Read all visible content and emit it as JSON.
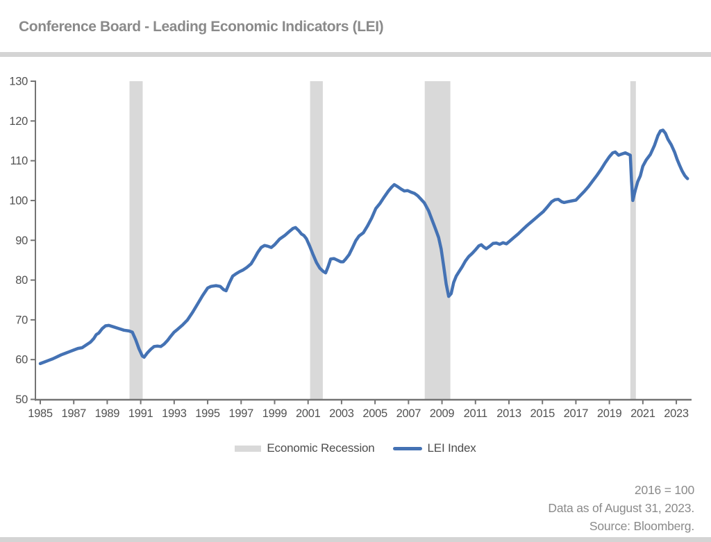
{
  "header": {
    "title": "Conference Board - Leading Economic Indicators (LEI)"
  },
  "legend": {
    "items": [
      {
        "label": "Economic Recession"
      },
      {
        "label": "LEI Index"
      }
    ]
  },
  "footer": {
    "lines": [
      "2016 = 100",
      "Data as of August 31, 2023.",
      "Source: Bloomberg."
    ]
  },
  "colors": {
    "line": "#4472b4",
    "recession": "#d9d9d9",
    "axis": "#737373",
    "tick_text": "#525252",
    "title_text": "#8a8a8a",
    "footer_text": "#8a8a8a",
    "divider": "#d4d4d4"
  },
  "chart_data": {
    "type": "line",
    "title": "Conference Board - Leading Economic Indicators (LEI)",
    "xlabel": "",
    "ylabel": "",
    "xlim": [
      1984.71,
      2023.91
    ],
    "ylim": [
      50,
      130
    ],
    "x_ticks": [
      1985,
      1987,
      1989,
      1991,
      1993,
      1995,
      1997,
      1999,
      2001,
      2003,
      2005,
      2007,
      2009,
      2011,
      2013,
      2015,
      2017,
      2019,
      2021,
      2023
    ],
    "y_ticks": [
      50,
      60,
      70,
      80,
      90,
      100,
      110,
      120,
      130
    ],
    "grid": false,
    "legend_position": "bottom",
    "recession_bands": [
      [
        1990.33,
        1991.12
      ],
      [
        2001.12,
        2001.88
      ],
      [
        2007.97,
        2009.5
      ],
      [
        2020.25,
        2020.58
      ]
    ],
    "series": [
      {
        "name": "LEI Index",
        "points": [
          [
            1985.0,
            59.0
          ],
          [
            1985.25,
            59.4
          ],
          [
            1985.5,
            59.8
          ],
          [
            1985.75,
            60.2
          ],
          [
            1986.0,
            60.7
          ],
          [
            1986.25,
            61.2
          ],
          [
            1986.5,
            61.6
          ],
          [
            1986.75,
            62.0
          ],
          [
            1987.0,
            62.4
          ],
          [
            1987.25,
            62.8
          ],
          [
            1987.5,
            63.0
          ],
          [
            1987.75,
            63.7
          ],
          [
            1988.0,
            64.4
          ],
          [
            1988.2,
            65.3
          ],
          [
            1988.35,
            66.3
          ],
          [
            1988.5,
            66.7
          ],
          [
            1988.7,
            67.8
          ],
          [
            1988.9,
            68.5
          ],
          [
            1989.1,
            68.6
          ],
          [
            1989.4,
            68.2
          ],
          [
            1989.7,
            67.8
          ],
          [
            1990.0,
            67.4
          ],
          [
            1990.3,
            67.2
          ],
          [
            1990.5,
            66.9
          ],
          [
            1990.7,
            65.0
          ],
          [
            1990.9,
            62.7
          ],
          [
            1991.1,
            60.9
          ],
          [
            1991.2,
            60.6
          ],
          [
            1991.4,
            61.7
          ],
          [
            1991.6,
            62.6
          ],
          [
            1991.8,
            63.3
          ],
          [
            1992.0,
            63.4
          ],
          [
            1992.2,
            63.3
          ],
          [
            1992.4,
            63.9
          ],
          [
            1992.6,
            64.8
          ],
          [
            1992.8,
            65.9
          ],
          [
            1993.0,
            66.9
          ],
          [
            1993.2,
            67.6
          ],
          [
            1993.5,
            68.7
          ],
          [
            1993.8,
            70.0
          ],
          [
            1994.1,
            71.9
          ],
          [
            1994.4,
            74.0
          ],
          [
            1994.7,
            76.1
          ],
          [
            1995.0,
            78.0
          ],
          [
            1995.2,
            78.4
          ],
          [
            1995.5,
            78.6
          ],
          [
            1995.75,
            78.4
          ],
          [
            1995.95,
            77.6
          ],
          [
            1996.1,
            77.3
          ],
          [
            1996.3,
            79.3
          ],
          [
            1996.5,
            81.0
          ],
          [
            1996.7,
            81.6
          ],
          [
            1996.9,
            82.1
          ],
          [
            1997.1,
            82.5
          ],
          [
            1997.35,
            83.2
          ],
          [
            1997.6,
            84.1
          ],
          [
            1997.8,
            85.5
          ],
          [
            1998.0,
            87.0
          ],
          [
            1998.2,
            88.2
          ],
          [
            1998.4,
            88.7
          ],
          [
            1998.6,
            88.5
          ],
          [
            1998.8,
            88.2
          ],
          [
            1999.0,
            88.9
          ],
          [
            1999.3,
            90.3
          ],
          [
            1999.6,
            91.2
          ],
          [
            1999.9,
            92.3
          ],
          [
            2000.1,
            93.0
          ],
          [
            2000.25,
            93.2
          ],
          [
            2000.45,
            92.4
          ],
          [
            2000.6,
            91.6
          ],
          [
            2000.75,
            91.2
          ],
          [
            2000.9,
            90.4
          ],
          [
            2001.1,
            88.5
          ],
          [
            2001.3,
            86.4
          ],
          [
            2001.5,
            84.4
          ],
          [
            2001.7,
            83.0
          ],
          [
            2001.9,
            82.2
          ],
          [
            2002.05,
            81.8
          ],
          [
            2002.2,
            83.4
          ],
          [
            2002.35,
            85.3
          ],
          [
            2002.55,
            85.4
          ],
          [
            2002.75,
            85.0
          ],
          [
            2002.95,
            84.6
          ],
          [
            2003.1,
            84.6
          ],
          [
            2003.25,
            85.3
          ],
          [
            2003.45,
            86.4
          ],
          [
            2003.65,
            88.1
          ],
          [
            2003.85,
            89.9
          ],
          [
            2004.05,
            91.1
          ],
          [
            2004.3,
            91.9
          ],
          [
            2004.55,
            93.6
          ],
          [
            2004.8,
            95.6
          ],
          [
            2005.05,
            98.0
          ],
          [
            2005.3,
            99.3
          ],
          [
            2005.55,
            100.9
          ],
          [
            2005.8,
            102.4
          ],
          [
            2006.0,
            103.4
          ],
          [
            2006.15,
            104.0
          ],
          [
            2006.35,
            103.5
          ],
          [
            2006.55,
            102.9
          ],
          [
            2006.75,
            102.4
          ],
          [
            2006.95,
            102.5
          ],
          [
            2007.15,
            102.1
          ],
          [
            2007.35,
            101.8
          ],
          [
            2007.55,
            101.2
          ],
          [
            2007.75,
            100.3
          ],
          [
            2007.95,
            99.4
          ],
          [
            2008.2,
            97.4
          ],
          [
            2008.4,
            95.2
          ],
          [
            2008.6,
            93.0
          ],
          [
            2008.8,
            90.7
          ],
          [
            2008.95,
            87.8
          ],
          [
            2009.1,
            83.5
          ],
          [
            2009.25,
            79.0
          ],
          [
            2009.4,
            75.9
          ],
          [
            2009.55,
            76.6
          ],
          [
            2009.7,
            79.4
          ],
          [
            2009.85,
            81.0
          ],
          [
            2010.0,
            82.0
          ],
          [
            2010.2,
            83.3
          ],
          [
            2010.4,
            84.8
          ],
          [
            2010.6,
            85.9
          ],
          [
            2010.8,
            86.7
          ],
          [
            2011.0,
            87.6
          ],
          [
            2011.2,
            88.6
          ],
          [
            2011.35,
            88.9
          ],
          [
            2011.5,
            88.3
          ],
          [
            2011.65,
            87.9
          ],
          [
            2011.85,
            88.5
          ],
          [
            2012.05,
            89.2
          ],
          [
            2012.25,
            89.3
          ],
          [
            2012.45,
            89.0
          ],
          [
            2012.65,
            89.4
          ],
          [
            2012.85,
            89.1
          ],
          [
            2013.05,
            89.8
          ],
          [
            2013.3,
            90.7
          ],
          [
            2013.55,
            91.6
          ],
          [
            2013.8,
            92.6
          ],
          [
            2014.05,
            93.6
          ],
          [
            2014.3,
            94.5
          ],
          [
            2014.55,
            95.4
          ],
          [
            2014.8,
            96.3
          ],
          [
            2015.05,
            97.2
          ],
          [
            2015.3,
            98.4
          ],
          [
            2015.55,
            99.7
          ],
          [
            2015.75,
            100.2
          ],
          [
            2015.95,
            100.3
          ],
          [
            2016.15,
            99.7
          ],
          [
            2016.3,
            99.5
          ],
          [
            2016.5,
            99.7
          ],
          [
            2016.75,
            99.9
          ],
          [
            2017.0,
            100.1
          ],
          [
            2017.25,
            101.2
          ],
          [
            2017.5,
            102.3
          ],
          [
            2017.75,
            103.5
          ],
          [
            2018.0,
            104.9
          ],
          [
            2018.25,
            106.3
          ],
          [
            2018.5,
            107.8
          ],
          [
            2018.75,
            109.5
          ],
          [
            2019.0,
            111.0
          ],
          [
            2019.2,
            112.0
          ],
          [
            2019.35,
            112.2
          ],
          [
            2019.55,
            111.4
          ],
          [
            2019.75,
            111.7
          ],
          [
            2019.95,
            112.0
          ],
          [
            2020.1,
            111.7
          ],
          [
            2020.25,
            111.4
          ],
          [
            2020.32,
            105.0
          ],
          [
            2020.4,
            100.0
          ],
          [
            2020.55,
            102.6
          ],
          [
            2020.7,
            104.8
          ],
          [
            2020.85,
            106.2
          ],
          [
            2021.0,
            108.6
          ],
          [
            2021.2,
            110.2
          ],
          [
            2021.45,
            111.6
          ],
          [
            2021.7,
            113.9
          ],
          [
            2021.9,
            116.3
          ],
          [
            2022.05,
            117.5
          ],
          [
            2022.2,
            117.7
          ],
          [
            2022.35,
            116.9
          ],
          [
            2022.5,
            115.4
          ],
          [
            2022.7,
            114.0
          ],
          [
            2022.9,
            112.1
          ],
          [
            2023.05,
            110.3
          ],
          [
            2023.2,
            108.8
          ],
          [
            2023.35,
            107.4
          ],
          [
            2023.5,
            106.3
          ],
          [
            2023.6,
            105.8
          ],
          [
            2023.67,
            105.5
          ]
        ]
      }
    ],
    "annotations": [
      "2016 = 100",
      "Data as of August 31, 2023.",
      "Source: Bloomberg."
    ]
  }
}
